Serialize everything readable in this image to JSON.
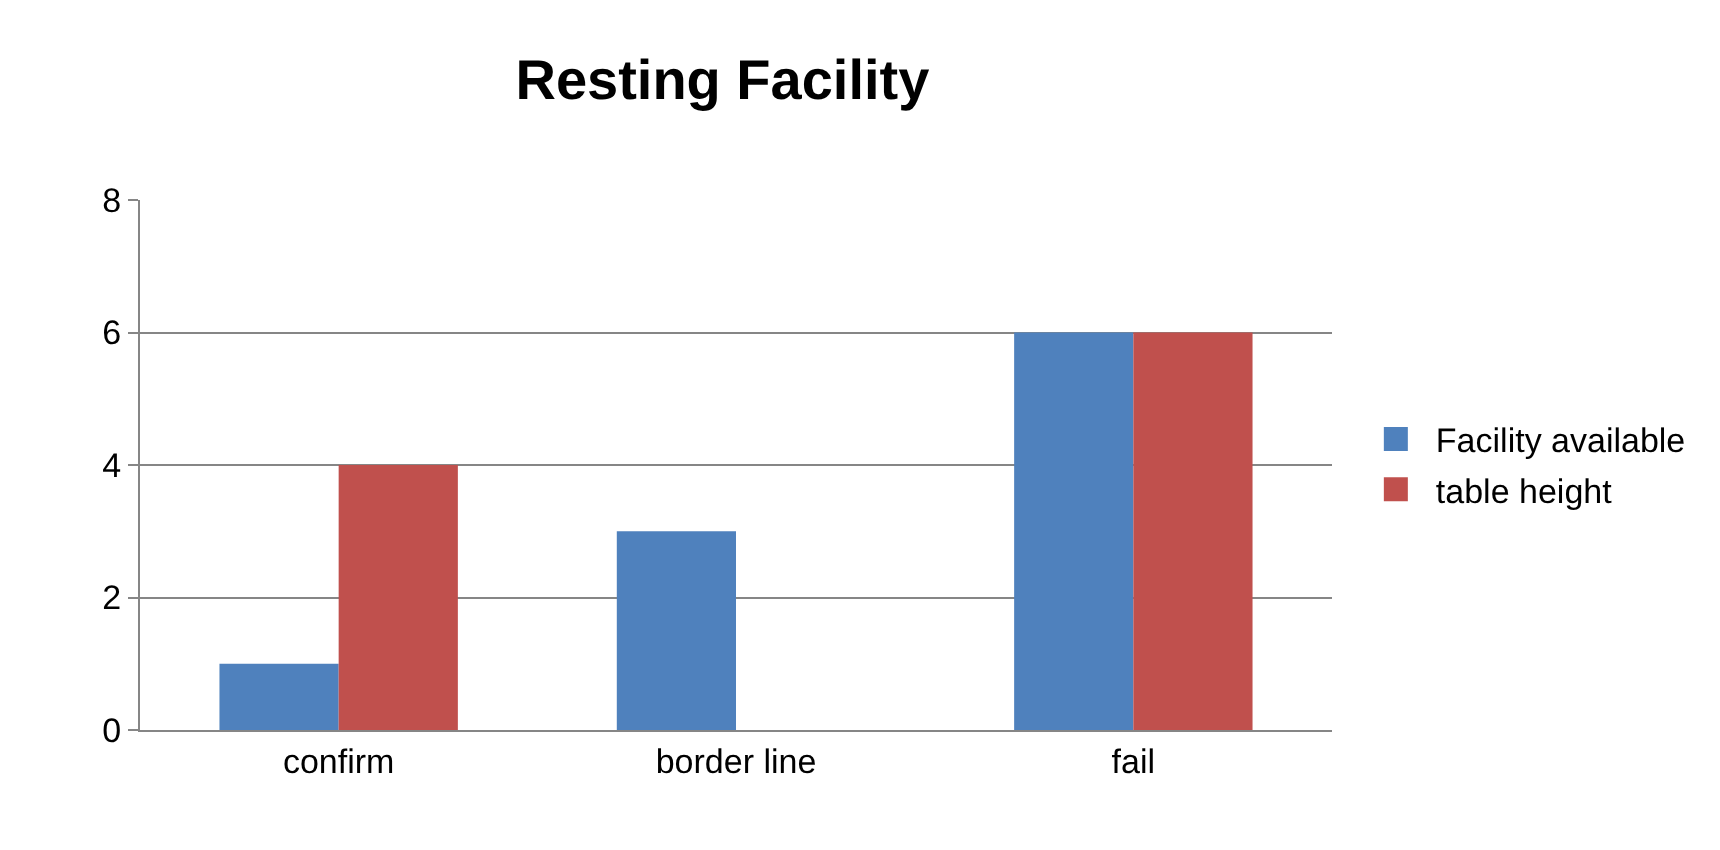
{
  "chart_data": {
    "type": "bar",
    "title": "Resting Facility",
    "categories": [
      "confirm",
      "border line",
      "fail"
    ],
    "series": [
      {
        "name": "Facility available",
        "color": "#4f81bd",
        "values": [
          1,
          3,
          6
        ]
      },
      {
        "name": "table height",
        "color": "#c0504d",
        "values": [
          4,
          0,
          6
        ]
      }
    ],
    "ylim": [
      0,
      8
    ],
    "yticks": [
      0,
      2,
      4,
      6,
      8
    ],
    "grid": "y",
    "legend": "right"
  }
}
